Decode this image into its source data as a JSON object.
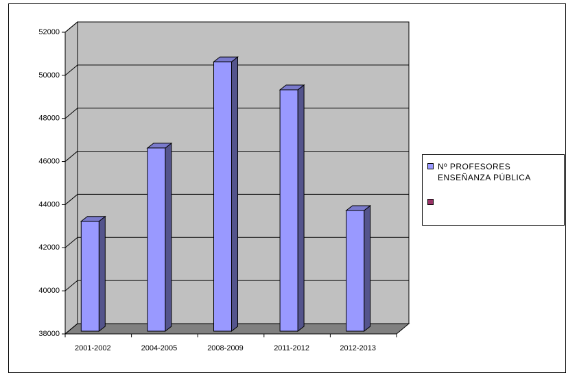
{
  "chart_data": {
    "type": "bar",
    "categories": [
      "2001-2002",
      "2004-2005",
      "2008-2009",
      "2011-2012",
      "2012-2013"
    ],
    "series": [
      {
        "name": "Nº PROFESORES ENSEÑANZA PÚBLICA",
        "color": "#9999ff",
        "values": [
          43100,
          46500,
          50500,
          49200,
          43600
        ]
      }
    ],
    "ylim": [
      38000,
      52000
    ],
    "yticks": [
      38000,
      40000,
      42000,
      44000,
      46000,
      48000,
      50000,
      52000
    ],
    "grid": true
  }
}
